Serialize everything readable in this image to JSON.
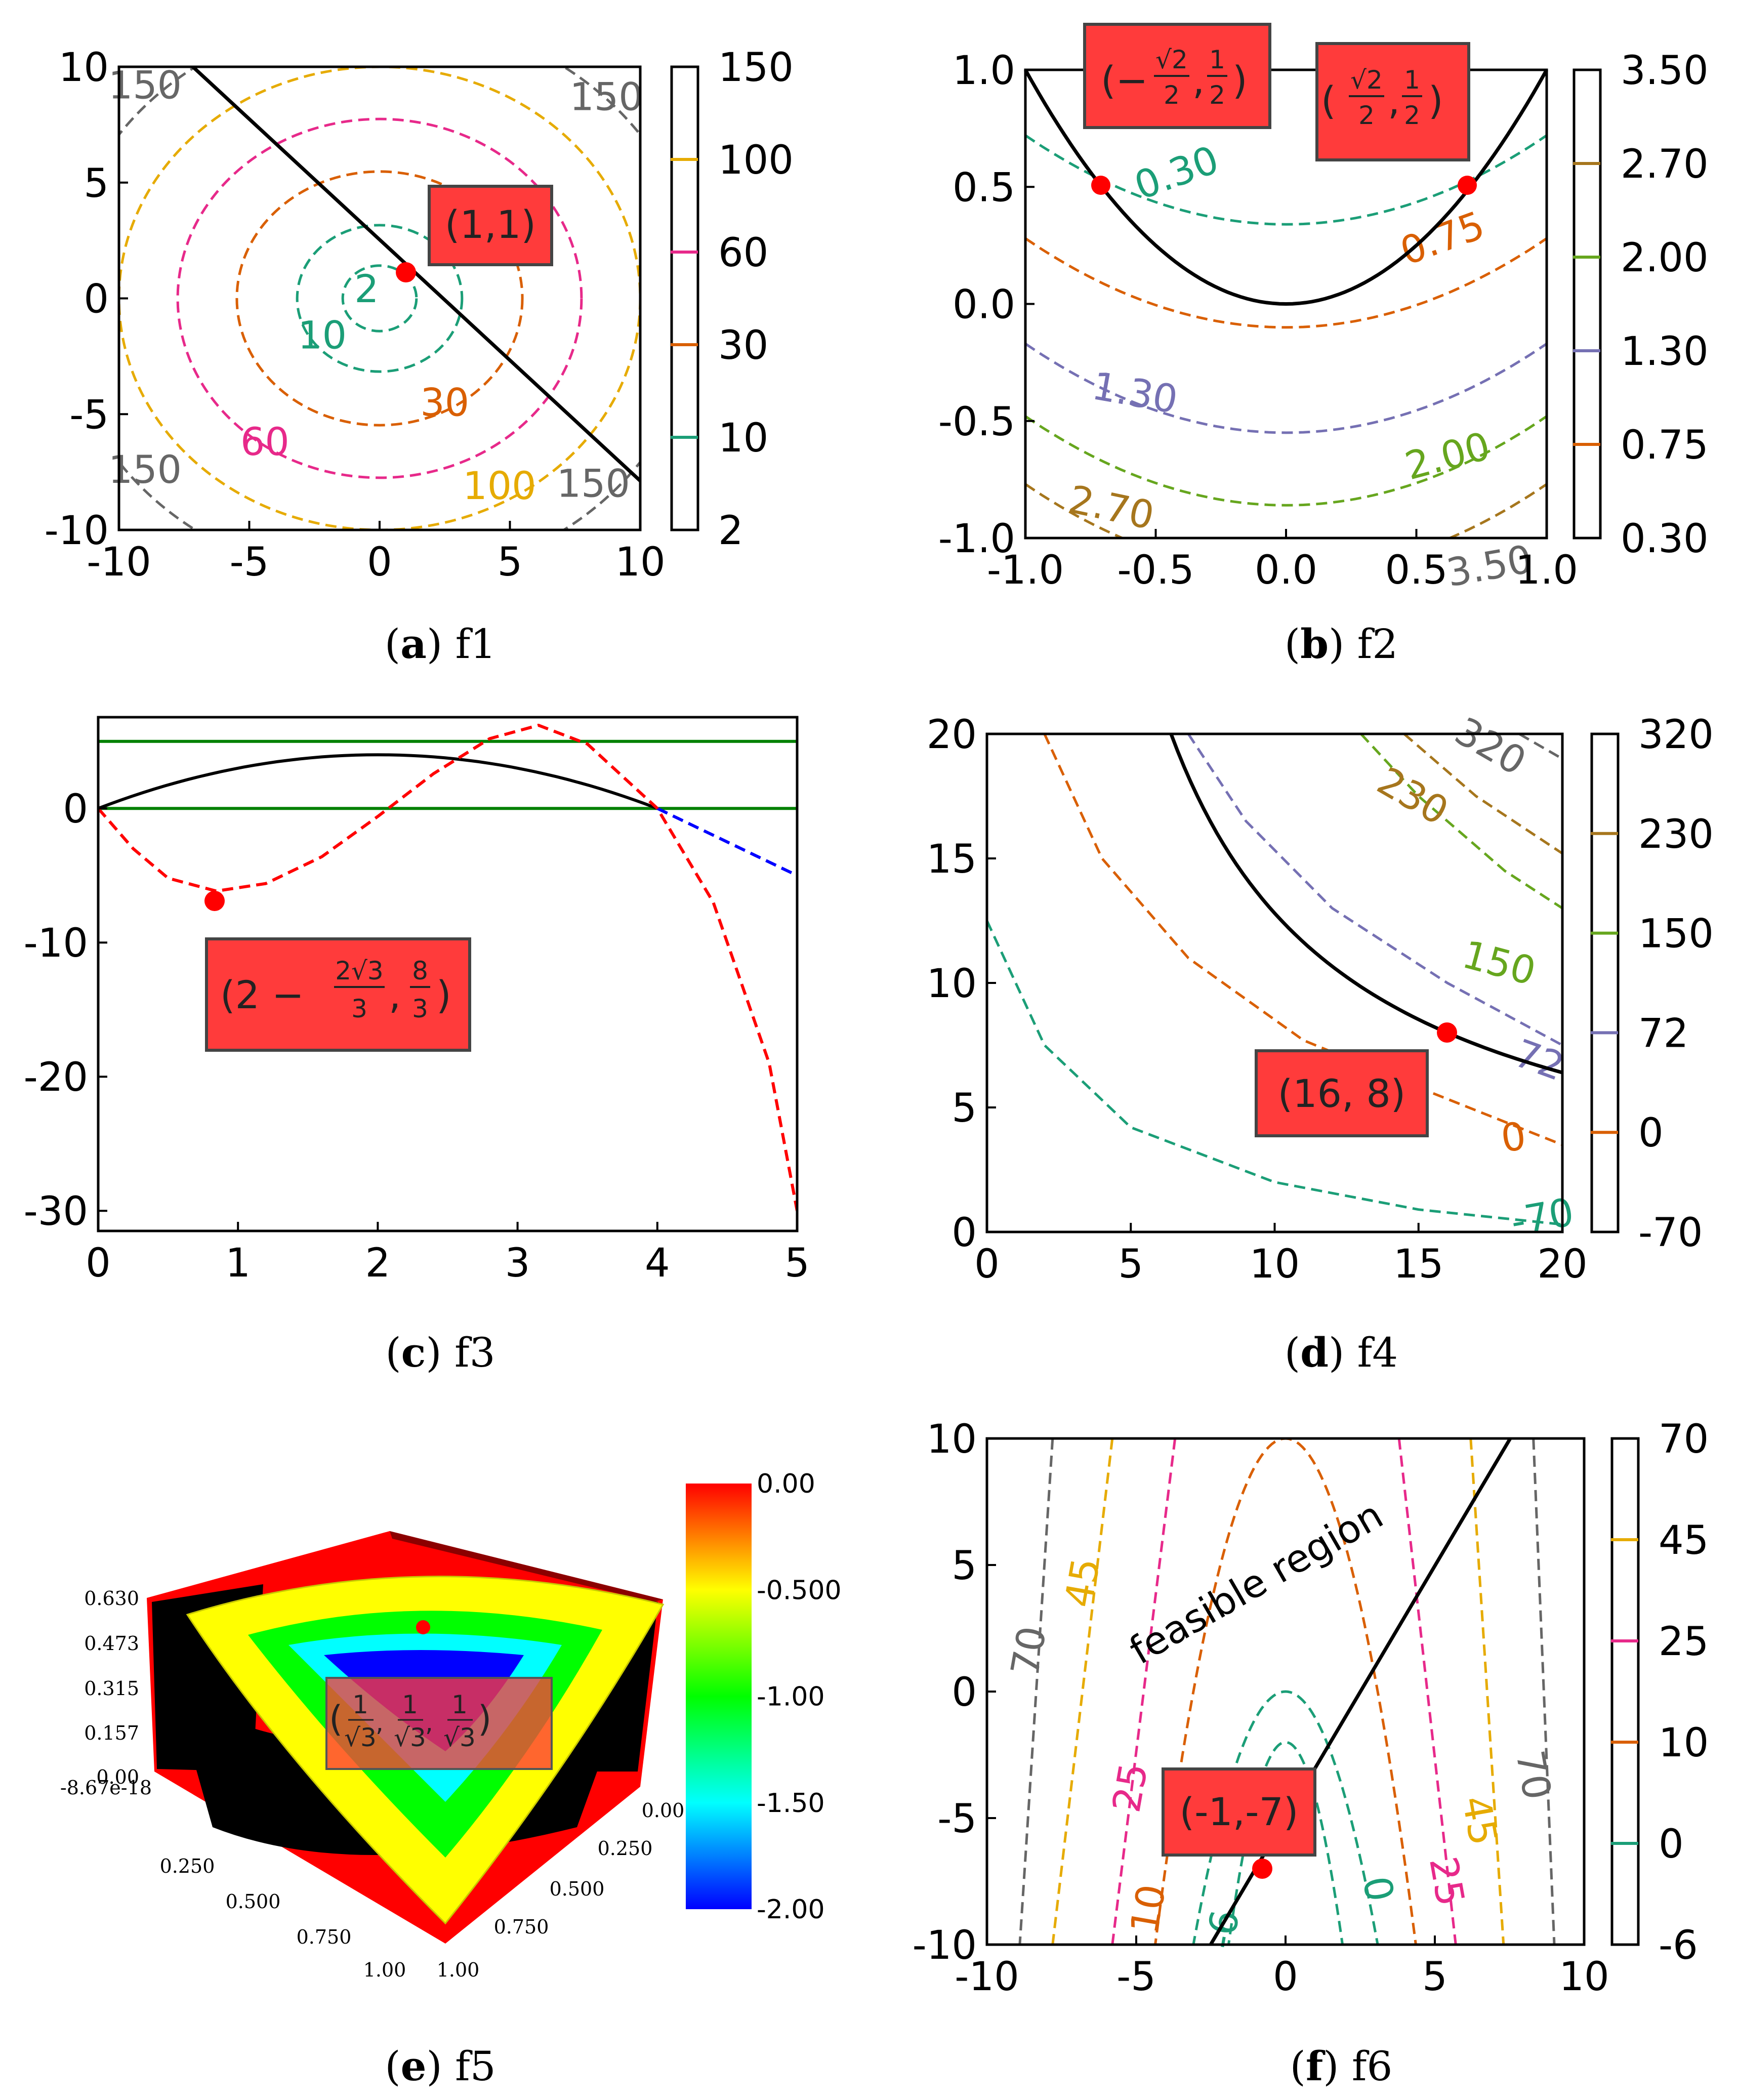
{
  "chart_data": [
    {
      "id": "a",
      "type": "contour",
      "title": "f1",
      "caption_letter": "a",
      "xlim": [
        -10,
        10
      ],
      "ylim": [
        -10,
        10
      ],
      "x_ticks": [
        "-10",
        "-5",
        "0",
        "5",
        "10"
      ],
      "y_ticks": [
        "10",
        "5",
        "0",
        "-5",
        "-10"
      ],
      "levels": [
        {
          "value": 2,
          "label": "2",
          "color": "#1b9e77"
        },
        {
          "value": 10,
          "label": "10",
          "color": "#1b9e77"
        },
        {
          "value": 30,
          "label": "30",
          "color": "#d95f02"
        },
        {
          "value": 60,
          "label": "60",
          "color": "#e7298a"
        },
        {
          "value": 100,
          "label": "100",
          "color": "#e6ab02"
        },
        {
          "value": 150,
          "label": "150",
          "color": "#666666"
        }
      ],
      "colorbar": {
        "labels": [
          "150",
          "100",
          "60",
          "30",
          "10",
          "2"
        ]
      },
      "constraint": "x + y = 2",
      "optimum": {
        "x": 1,
        "y": 1,
        "label": "(1,1)"
      }
    },
    {
      "id": "b",
      "type": "contour",
      "title": "f2",
      "caption_letter": "b",
      "xlim": [
        -1,
        1
      ],
      "ylim": [
        -1,
        1
      ],
      "x_ticks": [
        "-1.0",
        "-0.5",
        "0.0",
        "0.5",
        "1.0"
      ],
      "y_ticks": [
        "1.0",
        "0.5",
        "0.0",
        "-0.5",
        "-1.0"
      ],
      "levels": [
        {
          "value": 0.3,
          "label": "0.30",
          "color": "#1b9e77"
        },
        {
          "value": 0.75,
          "label": "0.75",
          "color": "#d95f02"
        },
        {
          "value": 1.3,
          "label": "1.30",
          "color": "#7570b3"
        },
        {
          "value": 2.0,
          "label": "2.00",
          "color": "#66a61e"
        },
        {
          "value": 2.7,
          "label": "2.70",
          "color": "#a6761d"
        },
        {
          "value": 3.5,
          "label": "3.50",
          "color": "#666666"
        }
      ],
      "colorbar": {
        "labels": [
          "3.50",
          "2.70",
          "2.00",
          "1.30",
          "0.75",
          "0.30"
        ]
      },
      "constraint": "y = x^2",
      "optima": [
        {
          "x": -0.7071,
          "y": 0.5
        },
        {
          "x": 0.7071,
          "y": 0.5
        }
      ],
      "annotations": {
        "left": {
          "open": "(−",
          "num": "√2",
          "den": "2",
          "comma": ",",
          "num2": "1",
          "den2": "2",
          "close": ")"
        },
        "right": {
          "open": "(",
          "num": "√2",
          "den": "2",
          "comma": ",",
          "num2": "1",
          "den2": "2",
          "close": ")"
        }
      }
    },
    {
      "id": "c",
      "type": "line",
      "title": "f3",
      "caption_letter": "c",
      "xlim": [
        0,
        5
      ],
      "ylim": [
        -31.5,
        6.8
      ],
      "x_ticks": [
        "0",
        "1",
        "2",
        "3",
        "4",
        "5"
      ],
      "y_ticks": [
        "0",
        "-10",
        "-20",
        "-30"
      ],
      "series": [
        {
          "name": "constraint",
          "style": "solid",
          "color": "#000000",
          "formula": "4x - x^2"
        },
        {
          "name": "objective",
          "style": "dashed",
          "color": "#ff0000",
          "formula": "(x-4)(x^3-4x^2-3x+12)/... "
        },
        {
          "name": "extension",
          "style": "dashed",
          "color": "#0000ff"
        },
        {
          "name": "bound_upper",
          "style": "solid",
          "color": "#008000",
          "y": 5
        },
        {
          "name": "bound_lower",
          "style": "solid",
          "color": "#008000",
          "y": 0
        }
      ],
      "optimum": {
        "x": 0.845,
        "y": -6.16
      },
      "annotation": {
        "open": "(2 −",
        "num": "2√3",
        "den": "3",
        "comma": ",",
        "num2": "8",
        "den2": "3",
        "close": ")"
      }
    },
    {
      "id": "d",
      "type": "contour",
      "title": "f4",
      "caption_letter": "d",
      "xlim": [
        0,
        20
      ],
      "ylim": [
        0,
        20
      ],
      "x_ticks": [
        "0",
        "5",
        "10",
        "15",
        "20"
      ],
      "y_ticks": [
        "20",
        "15",
        "10",
        "5",
        "0"
      ],
      "levels": [
        {
          "value": -70,
          "label": "-70",
          "color": "#1b9e77"
        },
        {
          "value": 0,
          "label": "0",
          "color": "#d95f02"
        },
        {
          "value": 72,
          "label": "72",
          "color": "#7570b3"
        },
        {
          "value": 150,
          "label": "150",
          "color": "#66a61e"
        },
        {
          "value": 230,
          "label": "230",
          "color": "#a6761d"
        },
        {
          "value": 320,
          "label": "320",
          "color": "#666666"
        }
      ],
      "colorbar": {
        "labels": [
          "320",
          "230",
          "150",
          "72",
          "0",
          "-70"
        ]
      },
      "constraint": "x*y = 128",
      "optimum": {
        "x": 16,
        "y": 8,
        "label": "(16, 8)"
      }
    },
    {
      "id": "e",
      "type": "surface3d",
      "title": "f5",
      "caption_letter": "e",
      "z_ticks": [
        "0.630",
        "0.473",
        "0.315",
        "0.157",
        "0.00"
      ],
      "x_ticks": [
        "-8.67e-18",
        "0.250",
        "0.500",
        "0.750",
        "1.00"
      ],
      "y_ticks": [
        "0.00",
        "0.250",
        "0.500",
        "0.750",
        "1.00"
      ],
      "colorbar": {
        "labels": [
          "0.00",
          "-0.500",
          "-1.00",
          "-1.50",
          "-2.00"
        ],
        "range": [
          -2,
          0
        ]
      },
      "annotation": {
        "open": "(",
        "num": "1",
        "den": "√3",
        "comma": ",",
        "close": ")"
      }
    },
    {
      "id": "f",
      "type": "contour",
      "title": "f6",
      "caption_letter": "f",
      "xlim": [
        -10,
        10
      ],
      "ylim": [
        -10,
        10
      ],
      "x_ticks": [
        "-10",
        "-5",
        "0",
        "5",
        "10"
      ],
      "y_ticks": [
        "10",
        "5",
        "0",
        "-5",
        "-10"
      ],
      "levels": [
        {
          "value": -6,
          "label": "-6",
          "color": "#1b9e77"
        },
        {
          "value": 0,
          "label": "0",
          "color": "#1b9e77"
        },
        {
          "value": 10,
          "label": "10",
          "color": "#d95f02"
        },
        {
          "value": 25,
          "label": "25",
          "color": "#e7298a"
        },
        {
          "value": 45,
          "label": "45",
          "color": "#e6ab02"
        },
        {
          "value": 70,
          "label": "70",
          "color": "#666666"
        }
      ],
      "colorbar": {
        "labels": [
          "70",
          "45",
          "25",
          "10",
          "0",
          "-6"
        ]
      },
      "constraint": "y = 2x - 5",
      "region_label": "feasible region",
      "optimum": {
        "x": -1,
        "y": -7,
        "label": "(-1,-7)"
      }
    }
  ],
  "captions": [
    {
      "letter": "a",
      "name": "f1"
    },
    {
      "letter": "b",
      "name": "f2"
    },
    {
      "letter": "c",
      "name": "f3"
    },
    {
      "letter": "d",
      "name": "f4"
    },
    {
      "letter": "e",
      "name": "f5"
    },
    {
      "letter": "f",
      "name": "f6"
    }
  ]
}
